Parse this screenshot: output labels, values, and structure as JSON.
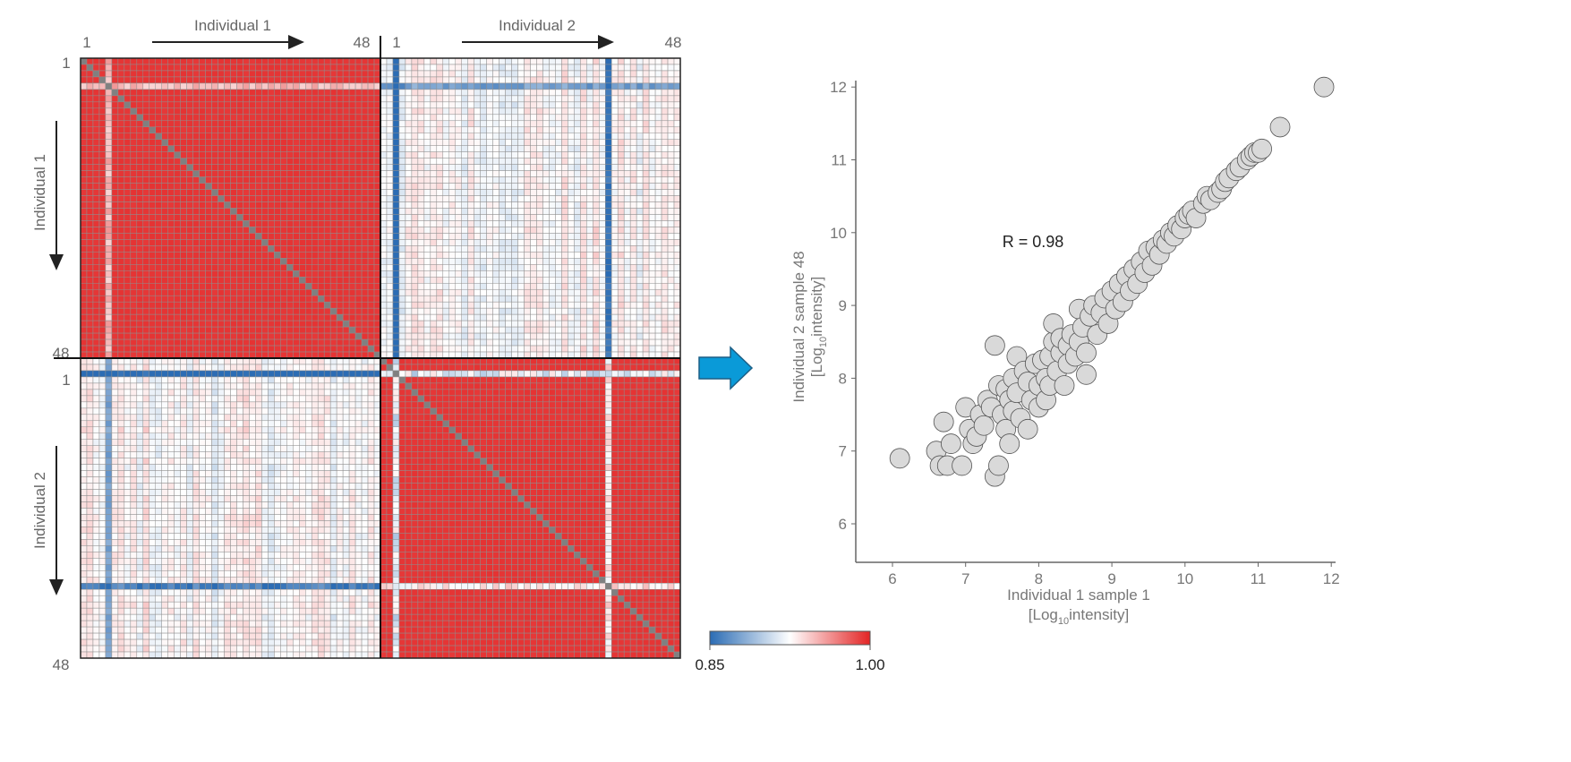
{
  "chart_data": [
    {
      "type": "heatmap",
      "groups": [
        {
          "label": "Individual 1",
          "first": "1",
          "last": "48"
        },
        {
          "label": "Individual 2",
          "first": "1",
          "last": "48"
        }
      ],
      "samples_per_group": 48,
      "diagonal_color": "#808080",
      "outlier_samples": {
        "individual_1": {
          "5": 0.55
        },
        "individual_2": {
          "3": 0.35,
          "37": 0.45
        }
      },
      "typical_correlation": {
        "within_individual": 0.995,
        "between_individuals": 0.935
      },
      "colorbar": {
        "min": 0.85,
        "max": 1.0,
        "min_label": "0.85",
        "max_label": "1.00",
        "colors": [
          "#2b6cb4",
          "#ffffff",
          "#e32424"
        ]
      }
    },
    {
      "type": "scatter",
      "xlabel": "Individual 1 sample 1",
      "xlabel_unit": {
        "prefix": "[Log",
        "sub": "10",
        "suffix": "intensity]"
      },
      "ylabel": "Individual 2 sample 48",
      "ylabel_unit": {
        "prefix": "[Log",
        "sub": "10",
        "suffix": "intensity]"
      },
      "xlim": [
        5.5,
        12
      ],
      "ylim": [
        5.5,
        12
      ],
      "xticks": [
        "6",
        "7",
        "8",
        "9",
        "10",
        "11",
        "12"
      ],
      "yticks": [
        "6",
        "7",
        "8",
        "9",
        "10",
        "11",
        "12"
      ],
      "annotation": "R = 0.98",
      "marker_color": "#d9d9d9",
      "points": [
        [
          6.1,
          6.9
        ],
        [
          6.6,
          7.0
        ],
        [
          6.65,
          6.8
        ],
        [
          6.7,
          7.4
        ],
        [
          6.75,
          6.8
        ],
        [
          6.8,
          7.1
        ],
        [
          6.95,
          6.8
        ],
        [
          7.0,
          7.6
        ],
        [
          7.05,
          7.3
        ],
        [
          7.1,
          7.1
        ],
        [
          7.15,
          7.2
        ],
        [
          7.2,
          7.5
        ],
        [
          7.25,
          7.35
        ],
        [
          7.3,
          7.7
        ],
        [
          7.35,
          7.6
        ],
        [
          7.4,
          8.45
        ],
        [
          7.4,
          6.65
        ],
        [
          7.45,
          6.8
        ],
        [
          7.45,
          7.9
        ],
        [
          7.5,
          7.5
        ],
        [
          7.55,
          7.85
        ],
        [
          7.55,
          7.3
        ],
        [
          7.6,
          7.7
        ],
        [
          7.6,
          7.1
        ],
        [
          7.65,
          8.0
        ],
        [
          7.65,
          7.55
        ],
        [
          7.7,
          8.3
        ],
        [
          7.7,
          7.8
        ],
        [
          7.75,
          7.45
        ],
        [
          7.8,
          8.1
        ],
        [
          7.85,
          7.3
        ],
        [
          7.85,
          7.95
        ],
        [
          7.9,
          7.7
        ],
        [
          7.95,
          8.2
        ],
        [
          8.0,
          7.9
        ],
        [
          8.0,
          7.6
        ],
        [
          8.05,
          8.25
        ],
        [
          8.1,
          7.7
        ],
        [
          8.1,
          8.0
        ],
        [
          8.15,
          8.3
        ],
        [
          8.15,
          7.9
        ],
        [
          8.2,
          8.5
        ],
        [
          8.2,
          8.75
        ],
        [
          8.25,
          8.1
        ],
        [
          8.3,
          8.35
        ],
        [
          8.3,
          8.55
        ],
        [
          8.35,
          7.9
        ],
        [
          8.4,
          8.45
        ],
        [
          8.4,
          8.2
        ],
        [
          8.45,
          8.6
        ],
        [
          8.5,
          8.3
        ],
        [
          8.55,
          8.95
        ],
        [
          8.55,
          8.5
        ],
        [
          8.6,
          8.7
        ],
        [
          8.65,
          8.35
        ],
        [
          8.65,
          8.05
        ],
        [
          8.7,
          8.85
        ],
        [
          8.75,
          9.0
        ],
        [
          8.8,
          8.6
        ],
        [
          8.85,
          8.9
        ],
        [
          8.9,
          9.1
        ],
        [
          8.95,
          8.75
        ],
        [
          9.0,
          9.2
        ],
        [
          9.05,
          8.95
        ],
        [
          9.1,
          9.3
        ],
        [
          9.15,
          9.05
        ],
        [
          9.2,
          9.4
        ],
        [
          9.25,
          9.2
        ],
        [
          9.3,
          9.5
        ],
        [
          9.35,
          9.3
        ],
        [
          9.4,
          9.6
        ],
        [
          9.45,
          9.45
        ],
        [
          9.5,
          9.75
        ],
        [
          9.55,
          9.55
        ],
        [
          9.6,
          9.8
        ],
        [
          9.65,
          9.7
        ],
        [
          9.7,
          9.9
        ],
        [
          9.75,
          9.85
        ],
        [
          9.8,
          10.0
        ],
        [
          9.85,
          9.95
        ],
        [
          9.9,
          10.1
        ],
        [
          9.95,
          10.05
        ],
        [
          10.0,
          10.2
        ],
        [
          10.05,
          10.25
        ],
        [
          10.1,
          10.3
        ],
        [
          10.15,
          10.2
        ],
        [
          10.25,
          10.4
        ],
        [
          10.3,
          10.5
        ],
        [
          10.35,
          10.45
        ],
        [
          10.45,
          10.55
        ],
        [
          10.5,
          10.6
        ],
        [
          10.55,
          10.7
        ],
        [
          10.6,
          10.75
        ],
        [
          10.7,
          10.85
        ],
        [
          10.75,
          10.9
        ],
        [
          10.85,
          11.0
        ],
        [
          10.9,
          11.05
        ],
        [
          10.95,
          11.1
        ],
        [
          11.0,
          11.1
        ],
        [
          11.05,
          11.15
        ],
        [
          11.3,
          11.45
        ],
        [
          11.9,
          12.0
        ]
      ]
    }
  ]
}
